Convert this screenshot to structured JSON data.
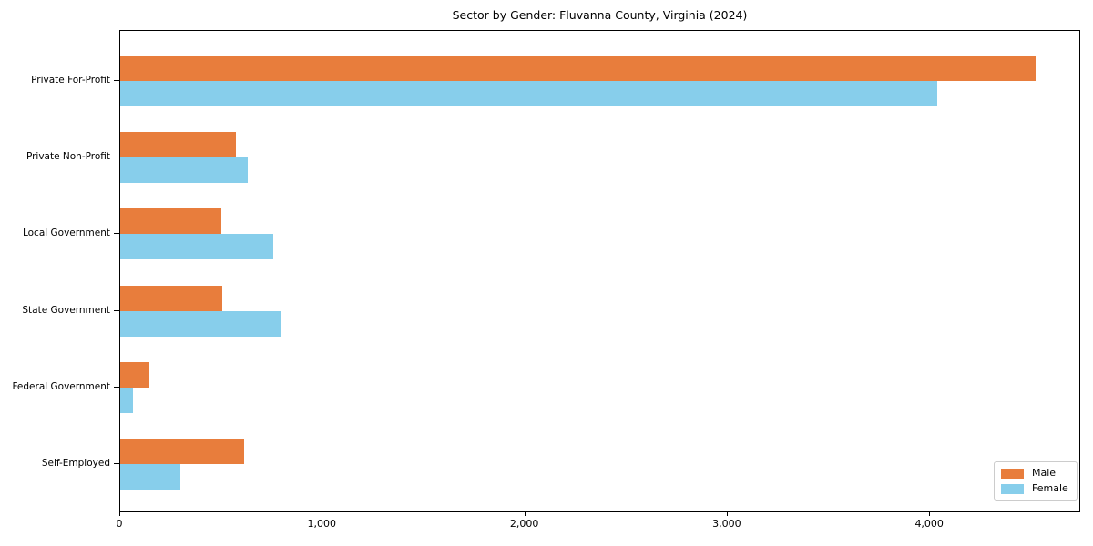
{
  "chart_data": {
    "type": "bar",
    "orientation": "horizontal",
    "title": "Sector by Gender: Fluvanna County, Virginia (2024)",
    "categories": [
      "Private For-Profit",
      "Private Non-Profit",
      "Local Government",
      "State Government",
      "Federal Government",
      "Self-Employed"
    ],
    "series": [
      {
        "name": "Male",
        "color": "#E87D3C",
        "values": [
          4520,
          570,
          500,
          505,
          145,
          610
        ]
      },
      {
        "name": "Female",
        "color": "#87CEEB",
        "values": [
          4035,
          630,
          755,
          790,
          65,
          295
        ]
      }
    ],
    "xlabel": "",
    "ylabel": "",
    "xlim": [
      0,
      4746
    ],
    "xtick_values": [
      0,
      1000,
      2000,
      3000,
      4000
    ],
    "xtick_labels": [
      "0",
      "1,000",
      "2,000",
      "3,000",
      "4,000"
    ],
    "grid": false,
    "legend": {
      "position": "lower-right",
      "entries": [
        "Male",
        "Female"
      ]
    },
    "colors": {
      "frame": "#000000",
      "background": "#ffffff",
      "legend_border": "#cccccc"
    },
    "bar_layout": "grouped pairs per category, Male bar above Female bar"
  }
}
